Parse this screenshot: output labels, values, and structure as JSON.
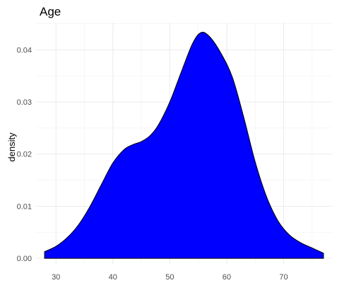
{
  "chart_data": {
    "type": "area",
    "title": "Age",
    "xlabel": "",
    "ylabel": "density",
    "xlim": [
      26.5,
      78.5
    ],
    "ylim": [
      -0.0012,
      0.0452
    ],
    "xticks": [
      30,
      40,
      50,
      60,
      70
    ],
    "yticks": [
      0.0,
      0.01,
      0.02,
      0.03,
      0.04
    ],
    "ytick_labels": [
      "0.00",
      "0.01",
      "0.02",
      "0.03",
      "0.04"
    ],
    "grid": true,
    "legend": "none",
    "fill_color": "#0000ff",
    "line_color": "#000000",
    "series": [
      {
        "x": [
          28,
          30,
          32,
          34,
          36,
          38,
          40,
          42,
          43.5,
          45,
          46.5,
          48,
          50,
          52,
          54,
          55.5,
          57,
          59,
          61,
          63,
          65,
          67,
          69,
          71,
          73,
          75,
          77
        ],
        "y": [
          0.0013,
          0.0023,
          0.004,
          0.0065,
          0.01,
          0.0142,
          0.0183,
          0.0209,
          0.0218,
          0.0224,
          0.0235,
          0.0256,
          0.03,
          0.0357,
          0.0412,
          0.0433,
          0.0425,
          0.0393,
          0.0347,
          0.027,
          0.0185,
          0.0118,
          0.0072,
          0.0045,
          0.003,
          0.002,
          0.001
        ]
      }
    ]
  }
}
